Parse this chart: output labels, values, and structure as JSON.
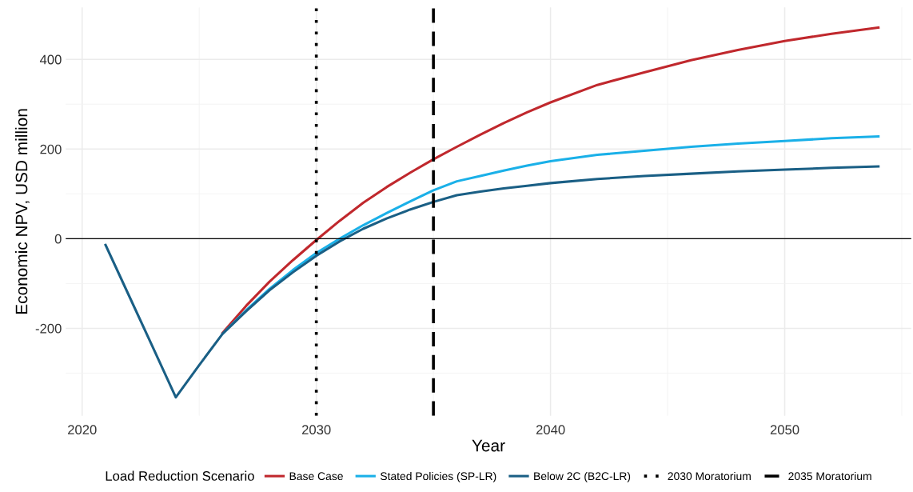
{
  "chart_data": {
    "type": "line",
    "xlabel": "Year",
    "ylabel": "Economic NPV, USD million",
    "legend_title": "Load Reduction Scenario",
    "xlim": [
      2019.3,
      2055.4
    ],
    "ylim": [
      -395,
      516
    ],
    "xticks": [
      2020,
      2030,
      2040,
      2050
    ],
    "yticks": [
      {
        "value": -200,
        "label": "-200"
      },
      0,
      200,
      400
    ],
    "grid": true,
    "legend": "bottom",
    "line_style": "solid",
    "series": [
      {
        "name": "Base Case",
        "color": "#c0282d",
        "x": [
          2026,
          2027,
          2028,
          2029,
          2030,
          2031,
          2032,
          2033,
          2034,
          2035,
          2036,
          2037,
          2038,
          2039,
          2040,
          2042,
          2044,
          2046,
          2048,
          2050,
          2052,
          2054
        ],
        "values": [
          -210,
          -150,
          -96,
          -48,
          -3,
          40,
          80,
          115,
          147,
          177,
          205,
          232,
          258,
          282,
          304,
          343,
          371,
          398,
          421,
          441,
          457,
          471
        ]
      },
      {
        "name": "Stated Policies (SP-LR)",
        "color": "#1ab0e8",
        "x": [
          2026,
          2027,
          2028,
          2029,
          2030,
          2031,
          2032,
          2033,
          2034,
          2035,
          2036,
          2037,
          2038,
          2039,
          2040,
          2042,
          2044,
          2046,
          2048,
          2050,
          2052,
          2054
        ],
        "values": [
          -212,
          -160,
          -112,
          -70,
          -32,
          0,
          30,
          57,
          83,
          108,
          128,
          140,
          152,
          163,
          173,
          187,
          196,
          205,
          212,
          218,
          224,
          228
        ]
      },
      {
        "name": "Below 2C (B2C-LR)",
        "color": "#1a5f85",
        "x": [
          2021,
          2022,
          2023,
          2024,
          2025,
          2026,
          2027,
          2028,
          2029,
          2030,
          2031,
          2032,
          2033,
          2034,
          2035,
          2036,
          2037,
          2038,
          2039,
          2040,
          2042,
          2044,
          2046,
          2048,
          2050,
          2052,
          2054
        ],
        "values": [
          -14,
          -127,
          -240,
          -354,
          -282,
          -212,
          -162,
          -115,
          -75,
          -38,
          -6,
          22,
          45,
          65,
          82,
          97,
          105,
          112,
          118,
          124,
          133,
          140,
          145,
          150,
          154,
          158,
          161
        ]
      }
    ],
    "ref_lines": [
      {
        "axis": "y",
        "value": 0,
        "color": "#000000",
        "line_style": "solid"
      },
      {
        "axis": "x",
        "value": 2030,
        "label": "2030 Moratorium",
        "color": "#000000",
        "line_style": "dotted"
      },
      {
        "axis": "x",
        "value": 2035,
        "label": "2035 Moratorium",
        "color": "#000000",
        "line_style": "dashed"
      }
    ]
  }
}
